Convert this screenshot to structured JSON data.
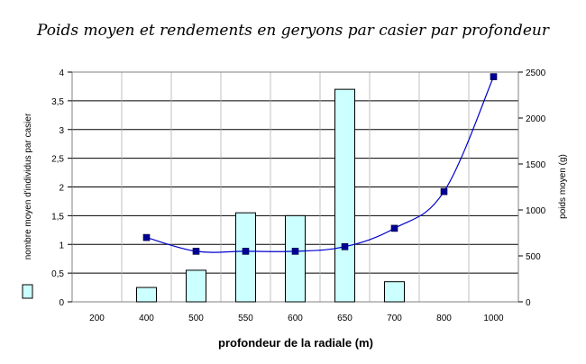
{
  "chart_data": {
    "type": "bar+line",
    "title": "Poids moyen et rendements en geryons par casier  par profondeur",
    "xlabel": "profondeur de la radiale (m)",
    "ylabel_left": "nombre moyen d'individus par casier",
    "ylabel_right": "poids moyen (g)",
    "categories": [
      "200",
      "400",
      "500",
      "550",
      "600",
      "650",
      "700",
      "800",
      "1000"
    ],
    "ylim_left": [
      0,
      4
    ],
    "yticks_left": [
      "0",
      "0,5",
      "1",
      "1,5",
      "2",
      "2,5",
      "3",
      "3,5",
      "4"
    ],
    "ylim_right": [
      0,
      2500
    ],
    "yticks_right": [
      "0",
      "500",
      "1000",
      "1500",
      "2000",
      "2500"
    ],
    "grid": true,
    "legend_position": "left",
    "series": [
      {
        "kind": "bar",
        "axis": "left",
        "color": "#ccffff",
        "values": [
          null,
          0.25,
          0.55,
          1.55,
          1.5,
          3.7,
          0.35,
          null,
          null
        ]
      },
      {
        "kind": "line",
        "axis": "right",
        "color": "#0000cc",
        "marker_color": "#000099",
        "values": [
          null,
          700,
          550,
          550,
          550,
          600,
          800,
          1200,
          2450
        ]
      }
    ]
  }
}
